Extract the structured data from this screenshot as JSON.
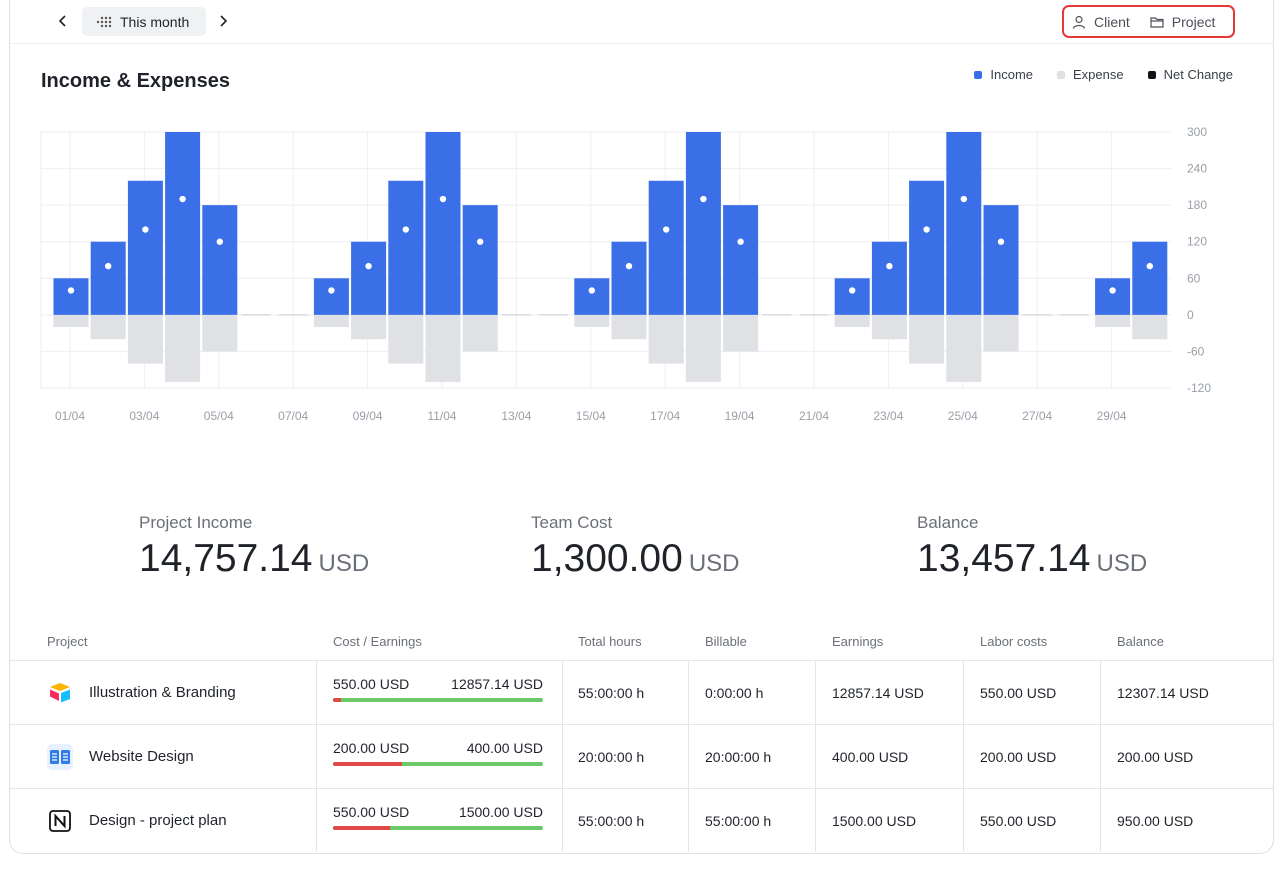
{
  "toolbar": {
    "period_label": "This month",
    "filters": [
      "Client",
      "Project"
    ]
  },
  "chart": {
    "title": "Income & Expenses",
    "legend": [
      {
        "label": "Income",
        "color": "#3b6fe8"
      },
      {
        "label": "Expense",
        "color": "#dfe1e5"
      },
      {
        "label": "Net Change",
        "color": "#111418"
      }
    ]
  },
  "chart_data": {
    "type": "bar",
    "title": "Income & Expenses",
    "categories": [
      "01/04",
      "02/04",
      "03/04",
      "04/04",
      "05/04",
      "06/04",
      "07/04",
      "08/04",
      "09/04",
      "10/04",
      "11/04",
      "12/04",
      "13/04",
      "14/04",
      "15/04",
      "16/04",
      "17/04",
      "18/04",
      "19/04",
      "20/04",
      "21/04",
      "22/04",
      "23/04",
      "24/04",
      "25/04",
      "26/04",
      "27/04",
      "28/04",
      "29/04",
      "30/04"
    ],
    "tick_labels": [
      "01/04",
      "03/04",
      "05/04",
      "07/04",
      "09/04",
      "11/04",
      "13/04",
      "15/04",
      "17/04",
      "19/04",
      "21/04",
      "23/04",
      "25/04",
      "27/04",
      "29/04"
    ],
    "series": [
      {
        "name": "Income",
        "color": "#3b6fe8",
        "values": [
          60,
          120,
          220,
          300,
          180,
          0,
          0,
          60,
          120,
          220,
          300,
          180,
          0,
          0,
          60,
          120,
          220,
          300,
          180,
          0,
          0,
          60,
          120,
          220,
          300,
          180,
          0,
          0,
          60,
          120
        ]
      },
      {
        "name": "Expense",
        "color": "#dfe1e5",
        "values": [
          -20,
          -40,
          -80,
          -110,
          -60,
          0,
          0,
          -20,
          -40,
          -80,
          -110,
          -60,
          0,
          0,
          -20,
          -40,
          -80,
          -110,
          -60,
          0,
          0,
          -20,
          -40,
          -80,
          -110,
          -60,
          0,
          0,
          -20,
          -40
        ]
      },
      {
        "name": "Net Change",
        "color": "#ffffff",
        "values": [
          40,
          80,
          140,
          190,
          120,
          0,
          0,
          40,
          80,
          140,
          190,
          120,
          0,
          0,
          40,
          80,
          140,
          190,
          120,
          0,
          0,
          40,
          80,
          140,
          190,
          120,
          0,
          0,
          40,
          80
        ]
      }
    ],
    "ylim": [
      -120,
      300
    ],
    "yticks": [
      300,
      240,
      180,
      120,
      60,
      0,
      -60,
      -120
    ],
    "grid": true,
    "legend_position": "top-right"
  },
  "summary": [
    {
      "label": "Project Income",
      "value": "14,757.14",
      "unit": "USD"
    },
    {
      "label": "Team Cost",
      "value": "1,300.00",
      "unit": "USD"
    },
    {
      "label": "Balance",
      "value": "13,457.14",
      "unit": "USD"
    }
  ],
  "table": {
    "headers": [
      "Project",
      "Cost / Earnings",
      "Total hours",
      "Billable",
      "Earnings",
      "Labor costs",
      "Balance"
    ],
    "rows": [
      {
        "name": "Illustration & Branding",
        "icon": "airtable-logo-icon",
        "cost": "550.00 USD",
        "earn": "12857.14 USD",
        "cost_fraction": 0.04,
        "hours": "55:00:00 h",
        "billable": "0:00:00 h",
        "earnings": "12857.14 USD",
        "labor": "550.00 USD",
        "balance": "12307.14 USD"
      },
      {
        "name": "Website Design",
        "icon": "book-logo-icon",
        "cost": "200.00 USD",
        "earn": "400.00 USD",
        "cost_fraction": 0.33,
        "hours": "20:00:00 h",
        "billable": "20:00:00 h",
        "earnings": "400.00 USD",
        "labor": "200.00 USD",
        "balance": "200.00 USD"
      },
      {
        "name": "Design - project plan",
        "icon": "notion-logo-icon",
        "cost": "550.00 USD",
        "earn": "1500.00 USD",
        "cost_fraction": 0.27,
        "hours": "55:00:00 h",
        "billable": "55:00:00 h",
        "earnings": "1500.00 USD",
        "labor": "550.00 USD",
        "balance": "950.00 USD"
      }
    ]
  }
}
